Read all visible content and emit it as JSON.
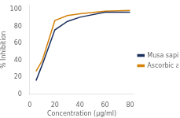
{
  "chart_data": {
    "type": "line",
    "x": [
      5,
      10,
      20,
      30,
      40,
      60,
      80
    ],
    "series": [
      {
        "name": "Musa sapientum",
        "color": "#1a2f5e",
        "values": [
          16,
          35,
          76,
          86,
          91,
          97,
          97
        ]
      },
      {
        "name": "Ascorbic acid",
        "color": "#d4820a",
        "values": [
          27,
          40,
          87,
          93,
          95,
          98,
          99
        ]
      }
    ],
    "x_label": "Concentration (μg/ml)",
    "y_label": "% Inhibition",
    "xlim": [
      0,
      83
    ],
    "ylim": [
      0,
      105
    ],
    "xticks": [
      0,
      20,
      40,
      60,
      80
    ],
    "yticks": [
      0,
      20,
      40,
      60,
      80,
      100
    ],
    "grid": false,
    "legend": "right"
  }
}
